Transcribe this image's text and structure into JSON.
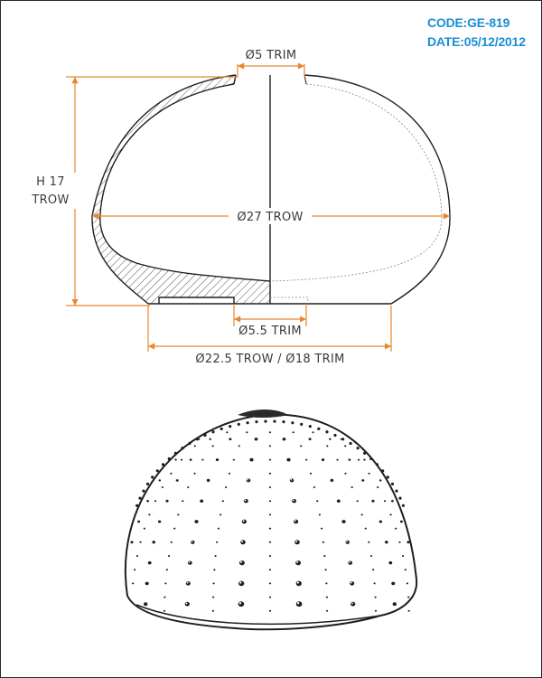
{
  "header": {
    "code": "CODE:GE-819",
    "date": "DATE:05/12/2012"
  },
  "dimensions": {
    "top_opening": "Ø5 TRIM",
    "height_line1": "H 17",
    "height_line2": "TROW",
    "body_diameter": "Ø27 TROW",
    "base_opening": "Ø5.5 TRIM",
    "base_diameter": "Ø22.5 TROW / Ø18 TRIM"
  },
  "colors": {
    "code_text": "#1a8fd6",
    "dimension_lines": "#e8872f",
    "drawing": "#1f1f1f"
  },
  "illustrations": {
    "top": "section-view-drawing",
    "bottom": "sea-urchin-shell-sketch"
  }
}
